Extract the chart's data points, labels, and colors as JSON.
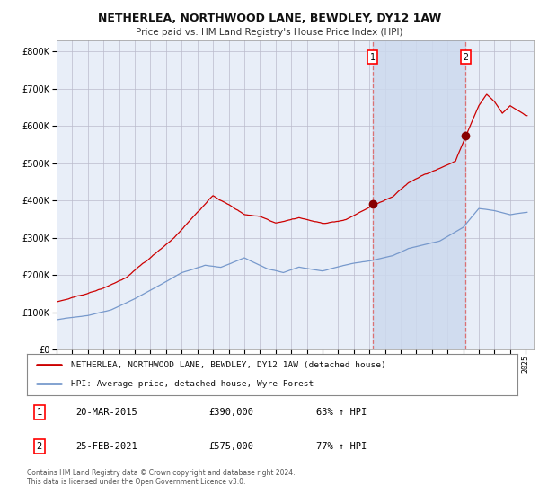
{
  "title1": "NETHERLEA, NORTHWOOD LANE, BEWDLEY, DY12 1AW",
  "title2": "Price paid vs. HM Land Registry's House Price Index (HPI)",
  "background_color": "#ffffff",
  "plot_bg_color": "#e8eef8",
  "grid_color": "#bbbbcc",
  "red_line_color": "#cc0000",
  "blue_line_color": "#7799cc",
  "highlight_bg": "#ccd9ee",
  "vline_color": "#dd6666",
  "marker_color": "#880000",
  "point1_year": 2015.21,
  "point1_value": 390000,
  "point1_label": "1",
  "point2_year": 2021.15,
  "point2_value": 575000,
  "point2_label": "2",
  "legend_red": "NETHERLEA, NORTHWOOD LANE, BEWDLEY, DY12 1AW (detached house)",
  "legend_blue": "HPI: Average price, detached house, Wyre Forest",
  "ann1_date": "20-MAR-2015",
  "ann1_price": "£390,000",
  "ann1_hpi": "63% ↑ HPI",
  "ann2_date": "25-FEB-2021",
  "ann2_price": "£575,000",
  "ann2_hpi": "77% ↑ HPI",
  "footer": "Contains HM Land Registry data © Crown copyright and database right 2024.\nThis data is licensed under the Open Government Licence v3.0.",
  "ylim_max": 830000,
  "ylim_min": 0,
  "xmin": 1995,
  "xmax": 2025.5
}
